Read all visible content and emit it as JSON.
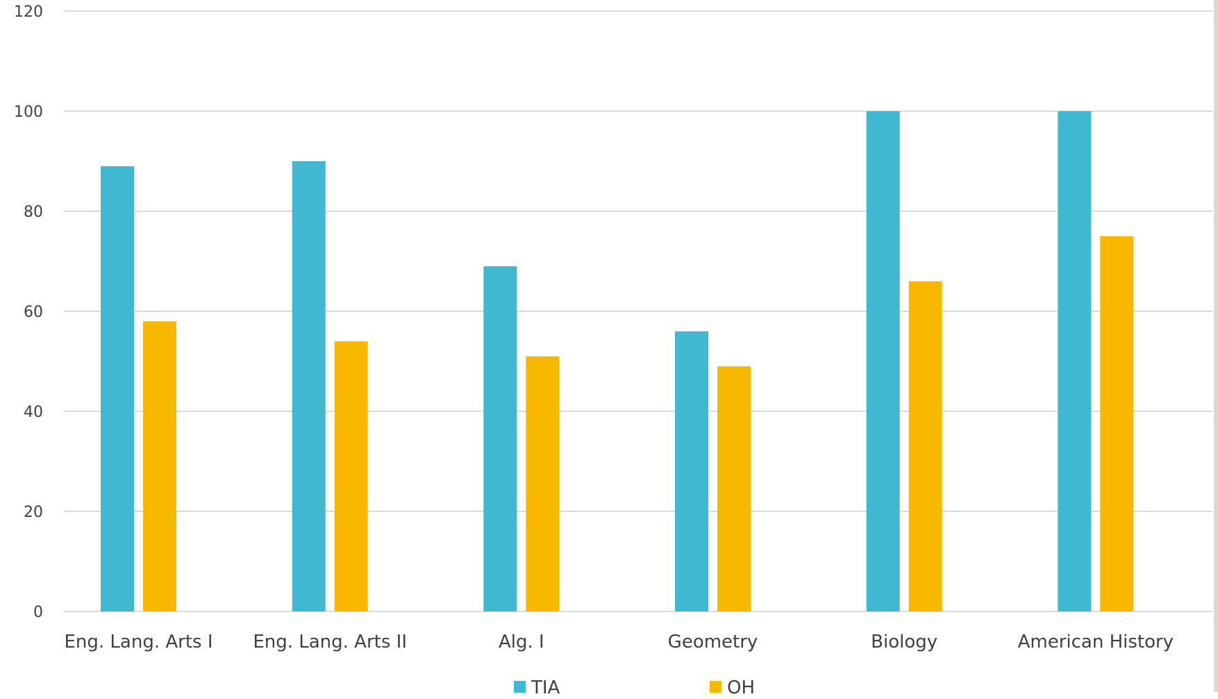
{
  "chart_data": {
    "type": "bar",
    "categories": [
      "Eng. Lang. Arts I",
      "Eng. Lang. Arts II",
      "Alg. I",
      "Geometry",
      "Biology",
      "American History"
    ],
    "series": [
      {
        "name": "TIA",
        "values": [
          89,
          90,
          69,
          56,
          100,
          100
        ],
        "color": "#41b8d2"
      },
      {
        "name": "OH",
        "values": [
          58,
          54,
          51,
          49,
          66,
          75
        ],
        "color": "#f9b800"
      }
    ],
    "title": "",
    "xlabel": "",
    "ylabel": "",
    "ylim": [
      0,
      120
    ],
    "yticks": [
      "0",
      "20",
      "40",
      "60",
      "80",
      "100",
      "120"
    ],
    "grid": true,
    "legend_position": "bottom"
  }
}
